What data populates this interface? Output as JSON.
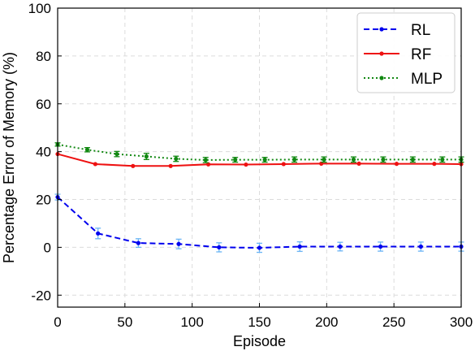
{
  "chart_data": {
    "type": "line",
    "title": "",
    "xlabel": "Episode",
    "ylabel": "Percentage Error of Memory (%)",
    "xlim": [
      0,
      300
    ],
    "ylim": [
      -25,
      100
    ],
    "xticks": [
      0,
      50,
      100,
      150,
      200,
      250,
      300
    ],
    "yticks": [
      -20,
      0,
      20,
      40,
      60,
      80,
      100
    ],
    "grid": true,
    "legend": "top-right",
    "series": [
      {
        "name": "RL",
        "color": "#0000ee",
        "linestyle": "dashed",
        "errcolor": "#6ab4f5",
        "x": [
          0,
          30,
          60,
          90,
          120,
          150,
          180,
          210,
          240,
          270,
          300
        ],
        "y": [
          21,
          5.8,
          1.8,
          1.4,
          0.0,
          -0.2,
          0.3,
          0.3,
          0.3,
          0.3,
          0.3
        ],
        "err": [
          1.2,
          2.2,
          1.8,
          2.0,
          1.9,
          1.9,
          2.0,
          1.8,
          1.9,
          1.9,
          1.9
        ]
      },
      {
        "name": "RF",
        "color": "#ee1111",
        "linestyle": "solid",
        "errcolor": "#ee1111",
        "x": [
          0,
          28,
          56,
          84,
          112,
          140,
          168,
          196,
          224,
          252,
          280,
          300
        ],
        "y": [
          39.0,
          34.8,
          34.0,
          34.0,
          34.7,
          34.6,
          34.8,
          35.0,
          35.0,
          34.9,
          34.9,
          34.8
        ],
        "err": [
          0,
          0,
          0,
          0,
          0,
          0,
          0,
          0,
          0,
          0,
          0,
          0
        ]
      },
      {
        "name": "MLP",
        "color": "#118811",
        "linestyle": "dotted",
        "errcolor": "#118811",
        "x": [
          0,
          22,
          44,
          66,
          88,
          110,
          132,
          154,
          176,
          198,
          220,
          242,
          264,
          286,
          300
        ],
        "y": [
          43.0,
          40.8,
          39.0,
          38.0,
          37.0,
          36.5,
          36.6,
          36.6,
          36.7,
          36.7,
          36.7,
          36.7,
          36.7,
          36.7,
          36.7
        ],
        "err": [
          0.7,
          0.9,
          1.1,
          1.3,
          1.1,
          1.1,
          1.0,
          1.0,
          1.1,
          1.1,
          1.1,
          1.1,
          1.1,
          1.1,
          1.1
        ]
      }
    ]
  }
}
